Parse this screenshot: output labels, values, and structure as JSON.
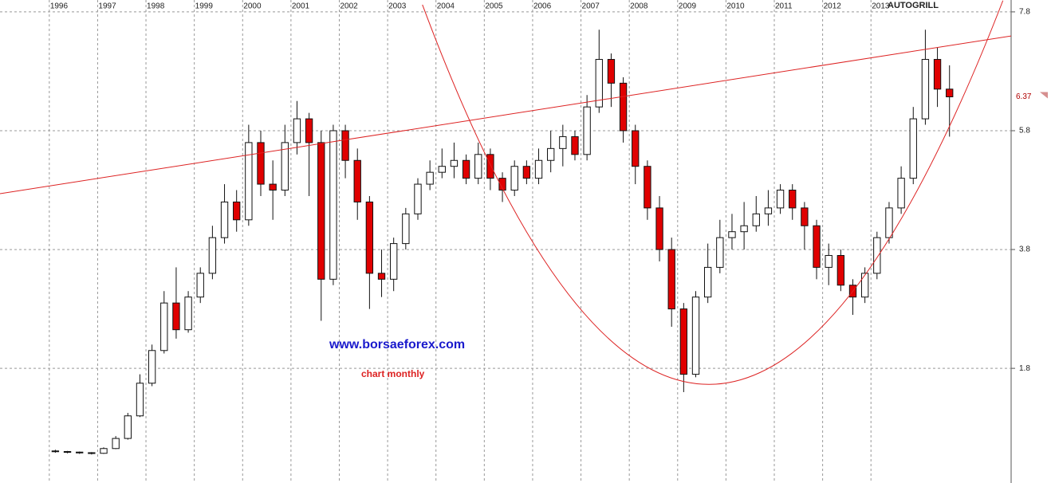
{
  "chart_data": {
    "type": "candlestick",
    "title": "AUTOGRILL",
    "annotations": [
      "www.borsaeforex.com",
      "chart monthly"
    ],
    "last_price": 6.37,
    "xlim": [
      1994.98,
      2015.9
    ],
    "xticks": [
      1996,
      1997,
      1998,
      1999,
      2000,
      2001,
      2002,
      2003,
      2004,
      2005,
      2006,
      2007,
      2008,
      2009,
      2010,
      2011,
      2012,
      2013
    ],
    "ylim": [
      -0.13,
      8.0
    ],
    "yticks": [
      1.8,
      3.8,
      5.8,
      7.8
    ],
    "grid": true,
    "up_color": "#ffffff",
    "down_color": "#e00000",
    "line_color": "#dd2222",
    "x": [
      1996.125,
      1996.375,
      1996.625,
      1996.875,
      1997.125,
      1997.375,
      1997.625,
      1997.875,
      1998.125,
      1998.375,
      1998.625,
      1998.875,
      1999.125,
      1999.375,
      1999.625,
      1999.875,
      2000.125,
      2000.375,
      2000.625,
      2000.875,
      2001.125,
      2001.375,
      2001.625,
      2001.875,
      2002.125,
      2002.375,
      2002.625,
      2002.875,
      2003.125,
      2003.375,
      2003.625,
      2003.875,
      2004.125,
      2004.375,
      2004.625,
      2004.875,
      2005.125,
      2005.375,
      2005.625,
      2005.875,
      2006.125,
      2006.375,
      2006.625,
      2006.875,
      2007.125,
      2007.375,
      2007.625,
      2007.875,
      2008.125,
      2008.375,
      2008.625,
      2008.875,
      2009.125,
      2009.375,
      2009.625,
      2009.875,
      2010.125,
      2010.375,
      2010.625,
      2010.875,
      2011.125,
      2011.375,
      2011.625,
      2011.875,
      2012.125,
      2012.375,
      2012.625,
      2012.875,
      2013.125,
      2013.375,
      2013.625,
      2013.875,
      2014.125,
      2014.375,
      2014.625
    ],
    "open": [
      0.41,
      0.4,
      0.39,
      0.38,
      0.37,
      0.45,
      0.62,
      1.0,
      1.55,
      2.1,
      2.9,
      2.45,
      3.0,
      3.4,
      4.0,
      4.6,
      4.3,
      5.6,
      4.9,
      4.8,
      5.6,
      6.0,
      5.6,
      3.3,
      5.8,
      5.3,
      4.6,
      3.4,
      3.3,
      3.9,
      4.4,
      4.9,
      5.1,
      5.2,
      5.3,
      5.0,
      5.4,
      5.0,
      4.8,
      5.2,
      5.0,
      5.3,
      5.5,
      5.7,
      5.4,
      6.2,
      7.0,
      6.6,
      5.8,
      5.2,
      4.5,
      3.8,
      2.8,
      1.7,
      3.0,
      3.5,
      4.0,
      4.1,
      4.2,
      4.4,
      4.5,
      4.8,
      4.5,
      4.2,
      3.5,
      3.7,
      3.2,
      3.0,
      3.4,
      4.0,
      4.5,
      5.0,
      6.0,
      7.0,
      6.5
    ],
    "high": [
      0.43,
      0.41,
      0.4,
      0.39,
      0.47,
      0.66,
      1.05,
      1.7,
      2.2,
      3.1,
      3.5,
      3.1,
      3.5,
      4.2,
      4.9,
      4.8,
      5.9,
      5.8,
      5.3,
      5.9,
      6.3,
      6.1,
      5.8,
      5.9,
      5.9,
      5.5,
      4.7,
      3.8,
      4.0,
      4.5,
      5.0,
      5.3,
      5.5,
      5.6,
      5.4,
      5.6,
      5.5,
      5.1,
      5.3,
      5.3,
      5.5,
      5.8,
      5.9,
      5.8,
      6.4,
      7.5,
      7.1,
      6.7,
      5.9,
      5.3,
      4.7,
      4.0,
      2.9,
      3.1,
      3.9,
      4.3,
      4.4,
      4.6,
      4.7,
      4.8,
      4.9,
      4.9,
      4.6,
      4.3,
      3.9,
      3.8,
      3.3,
      3.5,
      4.1,
      4.6,
      5.2,
      6.2,
      7.5,
      7.2,
      6.9
    ],
    "low": [
      0.38,
      0.37,
      0.36,
      0.35,
      0.36,
      0.44,
      0.6,
      0.98,
      1.5,
      2.05,
      2.3,
      2.4,
      2.9,
      3.3,
      3.9,
      4.1,
      4.2,
      4.7,
      4.3,
      4.7,
      5.4,
      4.7,
      2.6,
      3.2,
      5.0,
      4.3,
      2.8,
      3.0,
      3.1,
      3.8,
      4.3,
      4.8,
      5.0,
      5.0,
      4.9,
      4.9,
      4.8,
      4.6,
      4.7,
      4.9,
      4.9,
      5.1,
      5.2,
      5.3,
      5.3,
      6.1,
      6.2,
      5.6,
      4.9,
      4.3,
      3.6,
      2.5,
      1.4,
      1.65,
      2.9,
      3.4,
      3.8,
      3.8,
      4.1,
      4.2,
      4.4,
      4.3,
      3.8,
      3.3,
      3.2,
      3.1,
      2.7,
      2.9,
      3.3,
      3.9,
      4.4,
      4.9,
      5.9,
      6.2,
      5.7
    ],
    "close": [
      0.4,
      0.39,
      0.38,
      0.37,
      0.45,
      0.62,
      1.0,
      1.55,
      2.1,
      2.9,
      2.45,
      3.0,
      3.4,
      4.0,
      4.6,
      4.3,
      5.6,
      4.9,
      4.8,
      5.6,
      6.0,
      5.6,
      3.3,
      5.8,
      5.3,
      4.6,
      3.4,
      3.3,
      3.9,
      4.4,
      4.9,
      5.1,
      5.2,
      5.3,
      5.0,
      5.4,
      5.0,
      4.8,
      5.2,
      5.0,
      5.3,
      5.5,
      5.7,
      5.4,
      6.2,
      7.0,
      6.6,
      5.8,
      5.2,
      4.5,
      3.8,
      2.8,
      1.7,
      3.0,
      3.5,
      4.0,
      4.1,
      4.2,
      4.4,
      4.5,
      4.8,
      4.5,
      4.2,
      3.5,
      3.7,
      3.2,
      3.0,
      3.4,
      4.0,
      4.5,
      5.0,
      6.0,
      7.0,
      6.5,
      6.37
    ],
    "trendline": {
      "x": [
        1994.98,
        2016.02
      ],
      "y": [
        4.74,
        7.41
      ]
    },
    "cup": {
      "x": [
        2003.72,
        2009.66,
        2015.73
      ],
      "y": [
        7.92,
        1.53,
        7.99
      ]
    }
  }
}
